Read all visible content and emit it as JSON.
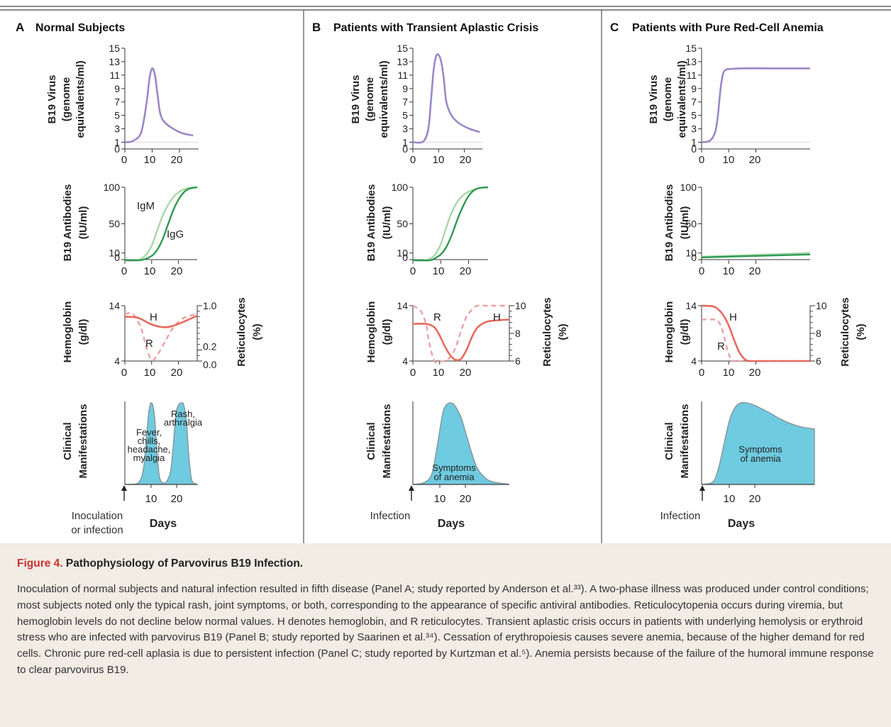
{
  "panels": [
    {
      "letter": "A",
      "title": "Normal Subjects",
      "inoculation_label": [
        "Inoculation",
        "or infection"
      ],
      "days_label": "Days",
      "virus": {
        "ylabel": [
          "B19 Virus",
          "(genome",
          "equivalents/ml)"
        ],
        "yticks": [
          0,
          1,
          3,
          5,
          7,
          9,
          11,
          13,
          15
        ],
        "xticks": [
          0,
          10,
          20
        ]
      },
      "antibodies": {
        "ylabel": [
          "B19 Antibodies",
          "(IU/ml)"
        ],
        "yticks": [
          0,
          10,
          50,
          100
        ],
        "xticks": [
          0,
          10,
          20
        ],
        "series_labels": [
          {
            "text": "IgM"
          },
          {
            "text": "IgG"
          }
        ]
      },
      "hemoglobin": {
        "ylabel_left": [
          "Hemoglobin",
          "(g/dl)"
        ],
        "ylabel_right": [
          "Reticulocytes",
          "(%)"
        ],
        "left_ticks": [
          14,
          4
        ],
        "right_ticks": [
          "1.0",
          "0.2",
          "0.0"
        ],
        "xticks": [
          0,
          10,
          20
        ],
        "series_labels": [
          "H",
          "R"
        ]
      },
      "clinical": {
        "ylabel": [
          "Clinical",
          "Manifestations"
        ],
        "xticks": [
          10,
          20
        ],
        "annotations": [
          [
            "Fever,",
            "chills,",
            "headache,",
            "myalgia"
          ],
          [
            "Rash,",
            "arthralgia"
          ]
        ]
      }
    },
    {
      "letter": "B",
      "title": "Patients with Transient Aplastic Crisis",
      "inoculation_label": [
        "Infection"
      ],
      "days_label": "Days",
      "virus": {
        "ylabel": [
          "B19 Virus",
          "(genome",
          "equivalents/ml)"
        ],
        "yticks": [
          0,
          1,
          3,
          5,
          7,
          9,
          11,
          13,
          15
        ],
        "xticks": [
          0,
          10,
          20
        ]
      },
      "antibodies": {
        "ylabel": [
          "B19 Antibodies",
          "(IU/ml)"
        ],
        "yticks": [
          0,
          10,
          50,
          100
        ],
        "xticks": [
          0,
          10,
          20
        ]
      },
      "hemoglobin": {
        "ylabel_left": [
          "Hemoglobin",
          "(g/dl)"
        ],
        "ylabel_right": [
          "Reticulocytes",
          "(%)"
        ],
        "left_ticks": [
          14,
          4
        ],
        "right_ticks": [
          "10",
          "8",
          "6"
        ],
        "xticks": [
          0,
          10,
          20
        ],
        "series_labels": [
          "H",
          "R"
        ]
      },
      "clinical": {
        "ylabel": [
          "Clinical",
          "Manifestations"
        ],
        "xticks": [
          10,
          20
        ],
        "annotations": [
          [
            "Symptoms",
            "of anemia"
          ]
        ]
      }
    },
    {
      "letter": "C",
      "title": "Patients with Pure Red-Cell Anemia",
      "inoculation_label": [
        "Infection"
      ],
      "days_label": "Days",
      "virus": {
        "ylabel": [
          "B19 Virus",
          "(genome",
          "equivalents/ml)"
        ],
        "yticks": [
          0,
          1,
          3,
          5,
          7,
          9,
          11,
          13,
          15
        ],
        "xticks": [
          0,
          10,
          20
        ]
      },
      "antibodies": {
        "ylabel": [
          "B19 Antibodies",
          "(IU/ml)"
        ],
        "yticks": [
          0,
          10,
          50,
          100
        ],
        "xticks": [
          0,
          10,
          20
        ]
      },
      "hemoglobin": {
        "ylabel_left": [
          "Hemoglobin",
          "(g/dl)"
        ],
        "ylabel_right": [
          "Reticulocytes",
          "(%)"
        ],
        "left_ticks": [
          14,
          4
        ],
        "right_ticks": [
          "10",
          "8",
          "6"
        ],
        "xticks": [
          0,
          10,
          20
        ],
        "series_labels": [
          "H",
          "R"
        ]
      },
      "clinical": {
        "ylabel": [
          "Clinical",
          "Manifestations"
        ],
        "xticks": [
          10,
          20
        ],
        "annotations": [
          [
            "Symptoms",
            "of anemia"
          ]
        ]
      }
    }
  ],
  "caption": {
    "label": "Figure 4.",
    "title": "Pathophysiology of Parvovirus B19 Infection.",
    "body": "Inoculation of normal subjects and natural infection resulted in fifth disease (Panel A; study reported by Anderson et al.³³). A two-phase illness was produced under control conditions; most subjects noted only the typical rash, joint symptoms, or both, corresponding to the appearance of specific antiviral antibodies. Reticulocytopenia occurs during viremia, but hemoglobin levels do not decline below normal values. H denotes hemoglobin, and R reticulocytes. Transient aplastic crisis occurs in patients with underlying hemolysis or erythroid stress who are infected with parvovirus B19 (Panel B; study reported by Saarinen et al.³⁴). Cessation of erythropoiesis causes severe anemia, because of the higher demand for red cells. Chronic pure red-cell aplasia is due to persistent infection (Panel C; study reported by Kurtzman et al.⁵). Anemia persists because of the failure of the humoral immune response to clear parvovirus B19."
  },
  "colors": {
    "virus": "#9c86c6",
    "igm": "#a8d6a4",
    "igg": "#2e9a54",
    "hemoglobin": "#e66a5e",
    "reticulocytes": "#eea0a4",
    "clinical_fill": "#6fcbe0",
    "clinical_stroke": "#8a9aa0",
    "caption_label": "#c8302f",
    "caption_bg": "#f1ece4"
  },
  "chart_data": [
    {
      "panel": "A",
      "type": "line",
      "name": "B19 Virus",
      "x": [
        0,
        3,
        6,
        8,
        9,
        10,
        11,
        12,
        13,
        15,
        20,
        25
      ],
      "y": [
        1,
        1.2,
        2.5,
        7,
        10.5,
        12,
        11,
        8,
        5.2,
        3.8,
        2.5,
        2
      ],
      "xlim": [
        0,
        27
      ],
      "ylim": [
        0,
        15
      ]
    },
    {
      "panel": "A",
      "type": "line",
      "name": "B19 Antibodies",
      "series": [
        {
          "name": "IgM",
          "x": [
            0,
            4,
            6,
            8,
            10,
            12,
            14,
            16,
            18,
            20,
            22,
            24,
            27
          ],
          "y": [
            0,
            0,
            2,
            8,
            20,
            40,
            60,
            75,
            86,
            93,
            97,
            99,
            100
          ]
        },
        {
          "name": "IgG",
          "x": [
            0,
            5,
            7,
            10,
            12,
            14,
            16,
            18,
            20,
            22,
            24,
            27
          ],
          "y": [
            0,
            0,
            1,
            6,
            14,
            28,
            48,
            68,
            83,
            93,
            98,
            100
          ]
        }
      ],
      "xlim": [
        0,
        27
      ],
      "ylim": [
        0,
        100
      ]
    },
    {
      "panel": "A",
      "type": "line",
      "name": "Hemoglobin / Reticulocytes",
      "series": [
        {
          "name": "H",
          "x": [
            0,
            5,
            10,
            15,
            20,
            27
          ],
          "y": [
            12,
            11.8,
            10.6,
            10.1,
            10.7,
            12.2
          ]
        },
        {
          "name": "R",
          "x": [
            0,
            3,
            6,
            8,
            10,
            12,
            15,
            18,
            22,
            27
          ],
          "y": [
            0.85,
            0.85,
            0.6,
            0.25,
            0.02,
            0.1,
            0.35,
            0.6,
            0.78,
            0.85
          ]
        }
      ],
      "xlim": [
        0,
        27
      ],
      "ylim_left": [
        4,
        14
      ],
      "ylim_right": [
        0,
        1
      ]
    },
    {
      "panel": "A",
      "type": "area",
      "name": "Clinical Manifestations",
      "x": [
        0,
        5,
        7,
        8,
        9,
        10,
        11,
        12,
        13,
        15,
        17,
        18,
        19,
        20,
        21,
        22,
        23,
        24,
        25,
        27
      ],
      "y": [
        0,
        0.02,
        0.2,
        0.55,
        0.9,
        1,
        0.85,
        0.4,
        0.08,
        0.02,
        0.15,
        0.45,
        0.85,
        0.97,
        1,
        0.97,
        0.75,
        0.3,
        0.05,
        0
      ],
      "xlim": [
        0,
        27
      ]
    },
    {
      "panel": "B",
      "type": "line",
      "name": "B19 Virus",
      "x": [
        0,
        4,
        6,
        7,
        8,
        9,
        10,
        11,
        12,
        13,
        15,
        18,
        22,
        26
      ],
      "y": [
        1,
        1.1,
        3,
        7,
        11.5,
        13.8,
        14,
        13,
        10.5,
        7,
        5,
        3.8,
        3,
        2.5
      ],
      "xlim": [
        0,
        27
      ],
      "ylim": [
        0,
        15
      ]
    },
    {
      "panel": "B",
      "type": "line",
      "name": "B19 Antibodies",
      "series": [
        {
          "name": "IgM",
          "x": [
            0,
            4,
            6,
            8,
            10,
            12,
            14,
            16,
            18,
            20,
            22,
            24,
            27
          ],
          "y": [
            0,
            0,
            2,
            8,
            22,
            45,
            66,
            80,
            89,
            94,
            97,
            99,
            100
          ]
        },
        {
          "name": "IgG",
          "x": [
            0,
            6,
            8,
            10,
            12,
            14,
            16,
            18,
            20,
            22,
            24,
            27
          ],
          "y": [
            0,
            0,
            3,
            8,
            18,
            35,
            56,
            74,
            88,
            96,
            99,
            100
          ]
        }
      ],
      "xlim": [
        0,
        27
      ],
      "ylim": [
        0,
        100
      ]
    },
    {
      "panel": "B",
      "type": "line",
      "name": "Hemoglobin / Reticulocytes",
      "series": [
        {
          "name": "H",
          "x": [
            0,
            5,
            8,
            10,
            12,
            14,
            16,
            18,
            20,
            22,
            24,
            27,
            30,
            36
          ],
          "y": [
            10.7,
            10.7,
            10.1,
            8.6,
            6.6,
            5,
            4.2,
            4.4,
            6,
            8.3,
            10,
            11,
            11.3,
            11.5
          ]
        },
        {
          "name": "R",
          "x": [
            0,
            3,
            5,
            6,
            8,
            10,
            12,
            14,
            16,
            18,
            20,
            22,
            24,
            27,
            30,
            36
          ],
          "y": [
            10,
            9.6,
            8.6,
            7.4,
            6,
            6,
            6,
            6.3,
            7,
            8.2,
            9.2,
            9.7,
            10,
            10,
            10,
            10
          ]
        }
      ],
      "xlim": [
        0,
        36
      ],
      "ylim_left": [
        4,
        14
      ],
      "ylim_right": [
        6,
        10
      ]
    },
    {
      "panel": "B",
      "type": "area",
      "name": "Clinical Manifestations",
      "x": [
        0,
        4,
        7,
        9,
        11,
        12,
        13,
        14,
        15,
        16,
        18,
        20,
        22,
        24,
        27,
        30,
        36
      ],
      "y": [
        0,
        0.02,
        0.12,
        0.45,
        0.85,
        0.95,
        0.99,
        1,
        0.99,
        0.95,
        0.82,
        0.6,
        0.38,
        0.2,
        0.08,
        0.03,
        0
      ],
      "xlim": [
        0,
        36
      ]
    },
    {
      "panel": "C",
      "type": "line",
      "name": "B19 Virus",
      "x": [
        0,
        3,
        5,
        6,
        7,
        8,
        9,
        10,
        15,
        25,
        40
      ],
      "y": [
        1,
        1.2,
        2.5,
        5,
        9,
        11.3,
        11.8,
        11.9,
        12,
        12,
        12
      ],
      "xlim": [
        0,
        40
      ],
      "ylim": [
        0,
        15
      ]
    },
    {
      "panel": "C",
      "type": "line",
      "name": "B19 Antibodies",
      "series": [
        {
          "name": "IgM",
          "x": [
            0,
            40
          ],
          "y": [
            5,
            10
          ]
        },
        {
          "name": "IgG",
          "x": [
            0,
            40
          ],
          "y": [
            4,
            8
          ]
        }
      ],
      "xlim": [
        0,
        40
      ],
      "ylim": [
        0,
        100
      ]
    },
    {
      "panel": "C",
      "type": "line",
      "name": "Hemoglobin / Reticulocytes",
      "series": [
        {
          "name": "H",
          "x": [
            0,
            4,
            6,
            8,
            10,
            12,
            14,
            16,
            18,
            25,
            40
          ],
          "y": [
            14,
            13.9,
            13.4,
            12.3,
            10.4,
            7.8,
            5.5,
            4.3,
            4,
            4,
            4
          ]
        },
        {
          "name": "R",
          "x": [
            0,
            5,
            6,
            7,
            8,
            9,
            10,
            11,
            12,
            14,
            40
          ],
          "y": [
            9,
            9,
            8.9,
            8.6,
            8,
            7.2,
            6.5,
            6.1,
            6,
            6,
            6
          ]
        }
      ],
      "xlim": [
        0,
        40
      ],
      "ylim_left": [
        4,
        14
      ],
      "ylim_right": [
        6,
        10
      ]
    },
    {
      "panel": "C",
      "type": "area",
      "name": "Clinical Manifestations",
      "x": [
        0,
        4,
        6,
        8,
        10,
        12,
        14,
        16,
        18,
        20,
        24,
        28,
        32,
        36,
        40
      ],
      "y": [
        0,
        0.03,
        0.2,
        0.5,
        0.8,
        0.95,
        1,
        1,
        0.98,
        0.95,
        0.88,
        0.8,
        0.74,
        0.7,
        0.68
      ],
      "xlim": [
        0,
        40
      ]
    }
  ]
}
